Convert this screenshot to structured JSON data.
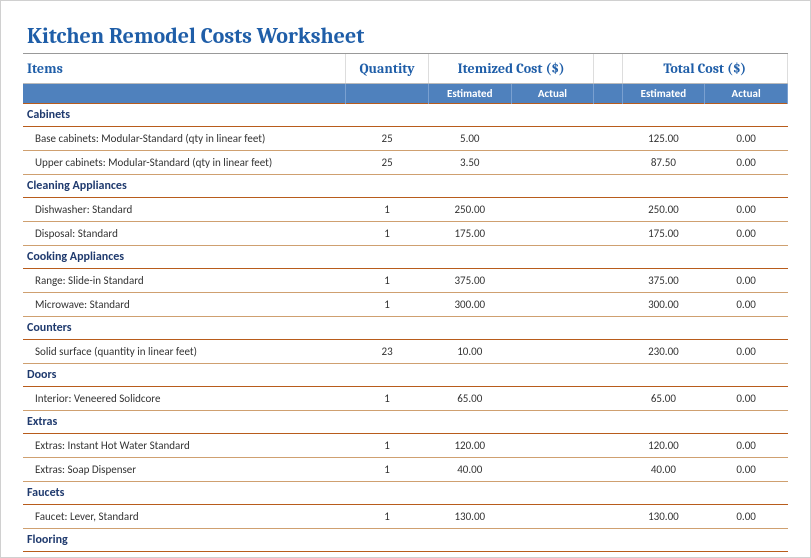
{
  "title": "Kitchen Remodel Costs Worksheet",
  "headers": {
    "items": "Items",
    "quantity": "Quantity",
    "itemized": "Itemized Cost ($)",
    "total": "Total Cost ($)",
    "estimated": "Estimated",
    "actual": "Actual"
  },
  "colors": {
    "title": "#1f5ea8",
    "header_bg": "#4f81bd",
    "header_fg": "#ffffff",
    "category_fg": "#1f3a6e",
    "rule": "#b85c1c",
    "row_rule": "#cfa070"
  },
  "sections": [
    {
      "name": "Cabinets",
      "rows": [
        {
          "label": "Base cabinets: Modular-Standard (qty in linear feet)",
          "qty": "25",
          "est_item": "5.00",
          "act_item": "",
          "est_total": "125.00",
          "act_total": "0.00"
        },
        {
          "label": "Upper cabinets: Modular-Standard (qty in linear feet)",
          "qty": "25",
          "est_item": "3.50",
          "act_item": "",
          "est_total": "87.50",
          "act_total": "0.00"
        }
      ]
    },
    {
      "name": "Cleaning Appliances",
      "rows": [
        {
          "label": "Dishwasher: Standard",
          "qty": "1",
          "est_item": "250.00",
          "act_item": "",
          "est_total": "250.00",
          "act_total": "0.00"
        },
        {
          "label": "Disposal: Standard",
          "qty": "1",
          "est_item": "175.00",
          "act_item": "",
          "est_total": "175.00",
          "act_total": "0.00"
        }
      ]
    },
    {
      "name": "Cooking Appliances",
      "rows": [
        {
          "label": "Range: Slide-in Standard",
          "qty": "1",
          "est_item": "375.00",
          "act_item": "",
          "est_total": "375.00",
          "act_total": "0.00"
        },
        {
          "label": "Microwave: Standard",
          "qty": "1",
          "est_item": "300.00",
          "act_item": "",
          "est_total": "300.00",
          "act_total": "0.00"
        }
      ]
    },
    {
      "name": "Counters",
      "rows": [
        {
          "label": "Solid surface (quantity in linear feet)",
          "qty": "23",
          "est_item": "10.00",
          "act_item": "",
          "est_total": "230.00",
          "act_total": "0.00"
        }
      ]
    },
    {
      "name": "Doors",
      "rows": [
        {
          "label": "Interior: Veneered Solidcore",
          "qty": "1",
          "est_item": "65.00",
          "act_item": "",
          "est_total": "65.00",
          "act_total": "0.00"
        }
      ]
    },
    {
      "name": "Extras",
      "rows": [
        {
          "label": "Extras: Instant Hot Water Standard",
          "qty": "1",
          "est_item": "120.00",
          "act_item": "",
          "est_total": "120.00",
          "act_total": "0.00"
        },
        {
          "label": "Extras: Soap Dispenser",
          "qty": "1",
          "est_item": "40.00",
          "act_item": "",
          "est_total": "40.00",
          "act_total": "0.00"
        }
      ]
    },
    {
      "name": "Faucets",
      "rows": [
        {
          "label": "Faucet: Lever, Standard",
          "qty": "1",
          "est_item": "130.00",
          "act_item": "",
          "est_total": "130.00",
          "act_total": "0.00"
        }
      ]
    },
    {
      "name": "Flooring",
      "rows": []
    }
  ]
}
